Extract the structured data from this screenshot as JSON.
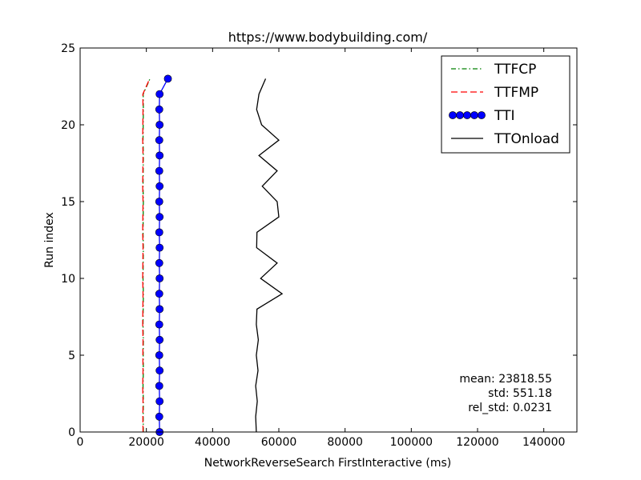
{
  "chart_data": {
    "type": "line",
    "title": "https://www.bodybuilding.com/",
    "xlabel": "NetworkReverseSearch FirstInteractive (ms)",
    "ylabel": "Run index",
    "xlim": [
      0,
      150000
    ],
    "ylim": [
      0,
      25
    ],
    "x_ticks": [
      "0",
      "20000",
      "40000",
      "60000",
      "80000",
      "100000",
      "120000",
      "140000"
    ],
    "y_ticks": [
      "0",
      "5",
      "10",
      "15",
      "20",
      "25"
    ],
    "grid": false,
    "legend_position": "top-right",
    "y": [
      0,
      1,
      2,
      3,
      4,
      5,
      6,
      7,
      8,
      9,
      10,
      11,
      12,
      13,
      14,
      15,
      16,
      17,
      18,
      19,
      20,
      21,
      22,
      23
    ],
    "series": [
      {
        "name": "TTFCP",
        "color": "#008000",
        "style": "dashdot",
        "values": [
          19100,
          19050,
          19100,
          19000,
          19100,
          19050,
          19100,
          19000,
          19050,
          19100,
          19000,
          19050,
          19100,
          19000,
          19050,
          19100,
          19000,
          19050,
          19100,
          19000,
          19050,
          19100,
          19050,
          21100
        ]
      },
      {
        "name": "TTFMP",
        "color": "#ff0000",
        "style": "dashed",
        "values": [
          19000,
          18950,
          19000,
          18900,
          19000,
          18950,
          19000,
          18900,
          18950,
          19000,
          18900,
          18950,
          19000,
          18900,
          18950,
          19000,
          18900,
          18950,
          19000,
          18900,
          18950,
          19000,
          18950,
          21000
        ]
      },
      {
        "name": "TTI",
        "color": "#0000ff",
        "style": "solid-marker",
        "values": [
          24000,
          23900,
          24000,
          23900,
          24000,
          23900,
          24000,
          23900,
          24000,
          23900,
          24000,
          23900,
          24000,
          23900,
          24000,
          23900,
          24000,
          23900,
          24000,
          23900,
          24000,
          23900,
          24000,
          26500
        ]
      },
      {
        "name": "TTOnload",
        "color": "#000000",
        "style": "solid",
        "values": [
          53200,
          53000,
          53500,
          53000,
          53700,
          53200,
          53800,
          53200,
          53400,
          61000,
          54500,
          59500,
          53300,
          53400,
          60000,
          59500,
          55000,
          59500,
          54000,
          60000,
          54800,
          53300,
          54000,
          56000
        ]
      }
    ],
    "stats": {
      "mean": "mean: 23818.55",
      "std": "std: 551.18",
      "rel_std": "rel_std: 0.0231"
    }
  }
}
